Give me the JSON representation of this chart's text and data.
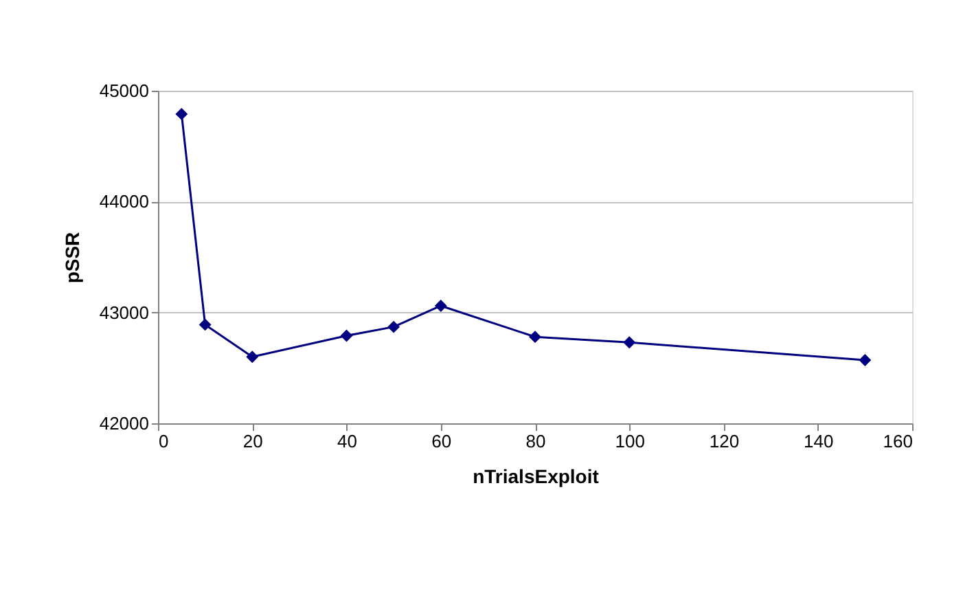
{
  "chart_data": {
    "type": "line",
    "xlabel": "nTrialsExploit",
    "ylabel": "pSSR",
    "x": [
      5,
      10,
      20,
      40,
      50,
      60,
      80,
      100,
      150
    ],
    "series": [
      {
        "color": "#000080",
        "values": [
          44790,
          42890,
          42600,
          42790,
          42870,
          43060,
          42780,
          42730,
          42570
        ]
      }
    ],
    "xlim": [
      0,
      160
    ],
    "xticks": [
      0,
      20,
      40,
      60,
      80,
      100,
      120,
      140,
      160
    ],
    "ylim": [
      42000,
      45000
    ],
    "yticks": [
      42000,
      43000,
      44000,
      45000
    ],
    "grid": "y",
    "marker": "diamond",
    "line_style": "solid"
  }
}
